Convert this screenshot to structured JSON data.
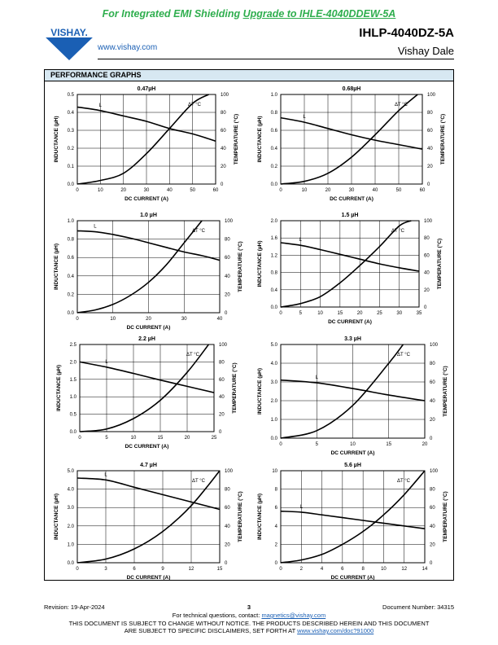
{
  "header": {
    "banner_prefix": "For Integrated EMI Shielding ",
    "banner_link": "Upgrade to IHLE-4040DDEW-5A",
    "website": "www.vishay.com",
    "logo_text": "VISHAY.",
    "part_number": "IHLP-4040DZ-5A",
    "company": "Vishay Dale"
  },
  "section_title": "PERFORMANCE GRAPHS",
  "footer": {
    "revision": "Revision: 19-Apr-2024",
    "page": "3",
    "document_number": "Document Number: 34315",
    "contact_prefix": "For technical questions, contact: ",
    "contact_email": "magnetics@vishay.com",
    "disclaimer_line1": "THIS DOCUMENT IS SUBJECT TO CHANGE WITHOUT NOTICE. THE PRODUCTS DESCRIBED HEREIN AND THIS DOCUMENT",
    "disclaimer_line2_prefix": "ARE SUBJECT TO SPECIFIC DISCLAIMERS, SET FORTH AT ",
    "disclaimer_link": "www.vishay.com/doc?91000"
  },
  "chart_data": [
    {
      "type": "line",
      "title": "0.47µH",
      "xlabel": "DC CURRENT (A)",
      "ylabel": "INDUCTANCE (µH)",
      "y2label": "TEMPERATURE (°C)",
      "xlim": [
        0,
        60
      ],
      "ylim": [
        0,
        0.5
      ],
      "y2lim": [
        0,
        100
      ],
      "xticks": [
        "0",
        "10",
        "20",
        "30",
        "40",
        "50",
        "60"
      ],
      "yticks": [
        "0.0",
        "0.1",
        "0.2",
        "0.3",
        "0.4",
        "0.5"
      ],
      "y2ticks": [
        "0",
        "20",
        "40",
        "60",
        "80",
        "100"
      ],
      "grid": true,
      "labels": {
        "inductance": "L",
        "temperature": "ΔT °C"
      },
      "series": [
        {
          "name": "L",
          "axis": "left",
          "x": [
            0,
            10,
            20,
            30,
            40,
            50,
            60
          ],
          "y": [
            0.43,
            0.41,
            0.38,
            0.35,
            0.31,
            0.28,
            0.24
          ]
        },
        {
          "name": "ΔT °C",
          "axis": "right",
          "x": [
            0,
            10,
            20,
            30,
            40,
            50,
            57
          ],
          "y": [
            0,
            4,
            12,
            34,
            62,
            90,
            100
          ]
        }
      ]
    },
    {
      "type": "line",
      "title": "0.68µH",
      "xlabel": "DC CURRENT (A)",
      "ylabel": "INDUCTANCE (µH)",
      "y2label": "TEMPERATURE (°C)",
      "xlim": [
        0,
        60
      ],
      "ylim": [
        0,
        1.0
      ],
      "y2lim": [
        0,
        100
      ],
      "xticks": [
        "0",
        "10",
        "20",
        "30",
        "40",
        "50",
        "60"
      ],
      "yticks": [
        "0.0",
        "0.2",
        "0.4",
        "0.6",
        "0.8",
        "1.0"
      ],
      "y2ticks": [
        "0",
        "20",
        "40",
        "60",
        "80",
        "100"
      ],
      "grid": true,
      "labels": {
        "inductance": "L",
        "temperature": "ΔT °C"
      },
      "series": [
        {
          "name": "L",
          "axis": "left",
          "x": [
            0,
            10,
            20,
            30,
            40,
            50,
            60
          ],
          "y": [
            0.74,
            0.69,
            0.62,
            0.55,
            0.49,
            0.44,
            0.39
          ]
        },
        {
          "name": "ΔT °C",
          "axis": "right",
          "x": [
            0,
            10,
            20,
            30,
            40,
            50,
            58
          ],
          "y": [
            0,
            3,
            12,
            30,
            55,
            82,
            100
          ]
        }
      ]
    },
    {
      "type": "line",
      "title": "1.0 µH",
      "xlabel": "DC CURRENT (A)",
      "ylabel": "INDUCTANCE (µH)",
      "y2label": "TEMPERATURE (°C)",
      "xlim": [
        0,
        40
      ],
      "ylim": [
        0,
        1.0
      ],
      "y2lim": [
        0,
        100
      ],
      "xticks": [
        "0",
        "10",
        "20",
        "30",
        "40"
      ],
      "yticks": [
        "0.0",
        "0.2",
        "0.4",
        "0.6",
        "0.8",
        "1.0"
      ],
      "y2ticks": [
        "0",
        "20",
        "40",
        "60",
        "80",
        "100"
      ],
      "grid": true,
      "labels": {
        "inductance": "L",
        "temperature": "ΔT °C"
      },
      "series": [
        {
          "name": "L",
          "axis": "left",
          "x": [
            0,
            5,
            10,
            15,
            20,
            25,
            30,
            35,
            40
          ],
          "y": [
            0.89,
            0.88,
            0.85,
            0.81,
            0.76,
            0.71,
            0.66,
            0.62,
            0.57
          ]
        },
        {
          "name": "ΔT °C",
          "axis": "right",
          "x": [
            0,
            5,
            10,
            15,
            20,
            25,
            30,
            35
          ],
          "y": [
            0,
            3,
            9,
            19,
            33,
            52,
            76,
            100
          ]
        }
      ]
    },
    {
      "type": "line",
      "title": "1.5 µH",
      "xlabel": "DC CURRENT (A)",
      "ylabel": "INDUCTANCE (µH)",
      "y2label": "TEMPERATURE (°C)",
      "xlim": [
        0,
        35
      ],
      "ylim": [
        0,
        2.0
      ],
      "y2lim": [
        0,
        100
      ],
      "xticks": [
        "0",
        "5",
        "10",
        "15",
        "20",
        "25",
        "30",
        "35"
      ],
      "yticks": [
        "0.0",
        "0.4",
        "0.8",
        "1.2",
        "1.6",
        "2.0"
      ],
      "y2ticks": [
        "0",
        "20",
        "40",
        "60",
        "80",
        "100"
      ],
      "grid": true,
      "labels": {
        "inductance": "L",
        "temperature": "ΔT °C"
      },
      "series": [
        {
          "name": "L",
          "axis": "left",
          "x": [
            0,
            5,
            10,
            15,
            20,
            25,
            30,
            35
          ],
          "y": [
            1.49,
            1.43,
            1.33,
            1.22,
            1.11,
            1.0,
            0.91,
            0.83
          ]
        },
        {
          "name": "ΔT °C",
          "axis": "right",
          "x": [
            0,
            5,
            10,
            15,
            20,
            25,
            30,
            33
          ],
          "y": [
            0,
            4,
            12,
            28,
            48,
            70,
            94,
            100
          ]
        }
      ]
    },
    {
      "type": "line",
      "title": "2.2 µH",
      "xlabel": "DC CURRENT (A)",
      "ylabel": "INDUCTANCE (µH)",
      "y2label": "TEMPERATURE (°C)",
      "xlim": [
        0,
        25
      ],
      "ylim": [
        0,
        2.5
      ],
      "y2lim": [
        0,
        100
      ],
      "xticks": [
        "0",
        "5",
        "10",
        "15",
        "20",
        "25"
      ],
      "yticks": [
        "0.0",
        "0.5",
        "1.0",
        "1.5",
        "2.0",
        "2.5"
      ],
      "y2ticks": [
        "0",
        "20",
        "40",
        "60",
        "80",
        "100"
      ],
      "grid": true,
      "labels": {
        "inductance": "L",
        "temperature": "ΔT °C"
      },
      "series": [
        {
          "name": "L",
          "axis": "left",
          "x": [
            0,
            5,
            10,
            15,
            20,
            25
          ],
          "y": [
            2.0,
            1.85,
            1.67,
            1.48,
            1.3,
            1.12
          ]
        },
        {
          "name": "ΔT °C",
          "axis": "right",
          "x": [
            0,
            5,
            10,
            15,
            20,
            24
          ],
          "y": [
            0,
            3,
            15,
            36,
            68,
            100
          ]
        }
      ]
    },
    {
      "type": "line",
      "title": "3.3 µH",
      "xlabel": "DC CURRENT (A)",
      "ylabel": "INDUCTANCE (µH)",
      "y2label": "TEMPERATURE (°C)",
      "xlim": [
        0,
        20
      ],
      "ylim": [
        0,
        5.0
      ],
      "y2lim": [
        0,
        100
      ],
      "xticks": [
        "0",
        "5",
        "10",
        "15",
        "20"
      ],
      "yticks": [
        "0.0",
        "1.0",
        "2.0",
        "3.0",
        "4.0",
        "5.0"
      ],
      "y2ticks": [
        "0",
        "20",
        "40",
        "60",
        "80",
        "100"
      ],
      "grid": true,
      "labels": {
        "inductance": "L",
        "temperature": "ΔT °C"
      },
      "series": [
        {
          "name": "L",
          "axis": "left",
          "x": [
            0,
            5,
            10,
            15,
            20
          ],
          "y": [
            3.1,
            2.95,
            2.65,
            2.3,
            2.0
          ]
        },
        {
          "name": "ΔT °C",
          "axis": "right",
          "x": [
            0,
            5,
            10,
            15,
            17
          ],
          "y": [
            0,
            8,
            35,
            80,
            100
          ]
        }
      ]
    },
    {
      "type": "line",
      "title": "4.7 µH",
      "xlabel": "DC CURRENT (A)",
      "ylabel": "INDUCTANCE (µH)",
      "y2label": "TEMPERATURE (°C)",
      "xlim": [
        0,
        15
      ],
      "ylim": [
        0,
        5.0
      ],
      "y2lim": [
        0,
        100
      ],
      "xticks": [
        "0",
        "3",
        "6",
        "9",
        "12",
        "15"
      ],
      "yticks": [
        "0.0",
        "1.0",
        "2.0",
        "3.0",
        "4.0",
        "5.0"
      ],
      "y2ticks": [
        "0",
        "20",
        "40",
        "60",
        "80",
        "100"
      ],
      "grid": true,
      "labels": {
        "inductance": "L",
        "temperature": "ΔT °C"
      },
      "series": [
        {
          "name": "L",
          "axis": "left",
          "x": [
            0,
            3,
            6,
            9,
            12,
            15
          ],
          "y": [
            4.6,
            4.5,
            4.1,
            3.7,
            3.3,
            2.9
          ]
        },
        {
          "name": "ΔT °C",
          "axis": "right",
          "x": [
            0,
            3,
            6,
            9,
            12,
            15
          ],
          "y": [
            0,
            4,
            15,
            34,
            62,
            100
          ]
        }
      ]
    },
    {
      "type": "line",
      "title": "5.6 µH",
      "xlabel": "DC CURRENT (A)",
      "ylabel": "INDUCTANCE (µH)",
      "y2label": "TEMPERATURE (°C)",
      "xlim": [
        0,
        14
      ],
      "ylim": [
        0,
        10
      ],
      "y2lim": [
        0,
        100
      ],
      "xticks": [
        "0",
        "2",
        "4",
        "6",
        "8",
        "10",
        "12",
        "14"
      ],
      "yticks": [
        "0",
        "2",
        "4",
        "6",
        "8",
        "10"
      ],
      "y2ticks": [
        "0",
        "20",
        "40",
        "60",
        "80",
        "100"
      ],
      "grid": true,
      "labels": {
        "inductance": "L",
        "temperature": "ΔT °C"
      },
      "series": [
        {
          "name": "L",
          "axis": "left",
          "x": [
            0,
            2,
            4,
            6,
            8,
            10,
            12,
            14
          ],
          "y": [
            5.6,
            5.5,
            5.2,
            4.9,
            4.6,
            4.3,
            4.0,
            3.7
          ]
        },
        {
          "name": "ΔT °C",
          "axis": "right",
          "x": [
            0,
            2,
            4,
            6,
            8,
            10,
            12,
            14
          ],
          "y": [
            0,
            3,
            9,
            20,
            34,
            52,
            74,
            100
          ]
        }
      ]
    }
  ]
}
